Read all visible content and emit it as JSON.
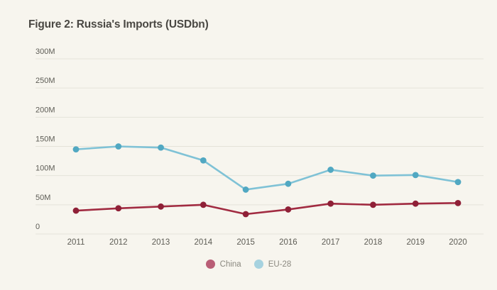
{
  "title": "Figure 2: Russia's Imports (USDbn)",
  "legend": {
    "items": [
      {
        "label": "China",
        "color": "#b95e76"
      },
      {
        "label": "EU-28",
        "color": "#a6d2df"
      }
    ]
  },
  "chart_data": {
    "type": "line",
    "title": "Figure 2: Russia's Imports (USDbn)",
    "x": [
      "2011",
      "2012",
      "2013",
      "2014",
      "2015",
      "2016",
      "2017",
      "2018",
      "2019",
      "2020"
    ],
    "series": [
      {
        "name": "China",
        "values": [
          40,
          44,
          47,
          50,
          34,
          42,
          52,
          50,
          52,
          53
        ],
        "line_color": "#a12b41",
        "dot_color": "#8f2037"
      },
      {
        "name": "EU-28",
        "values": [
          145,
          150,
          148,
          126,
          76,
          86,
          110,
          100,
          101,
          89
        ],
        "line_color": "#7fc2d6",
        "dot_color": "#51a8c2"
      }
    ],
    "xlabel": "",
    "ylabel": "",
    "ylim": [
      0,
      300
    ],
    "y_ticks": [
      {
        "value": 300,
        "label": "300M"
      },
      {
        "value": 250,
        "label": "250M"
      },
      {
        "value": 200,
        "label": "200M"
      },
      {
        "value": 150,
        "label": "150M"
      },
      {
        "value": 100,
        "label": "100M"
      },
      {
        "value": 50,
        "label": "50M"
      },
      {
        "value": 0,
        "label": "0"
      }
    ],
    "grid": true,
    "legend_position": "bottom-center"
  },
  "colors": {
    "background": "#f7f5ee",
    "grid": "#e5e3d9",
    "axis_text": "#5d5c55",
    "title_text": "#4a4843",
    "legend_text": "#8b8980"
  }
}
